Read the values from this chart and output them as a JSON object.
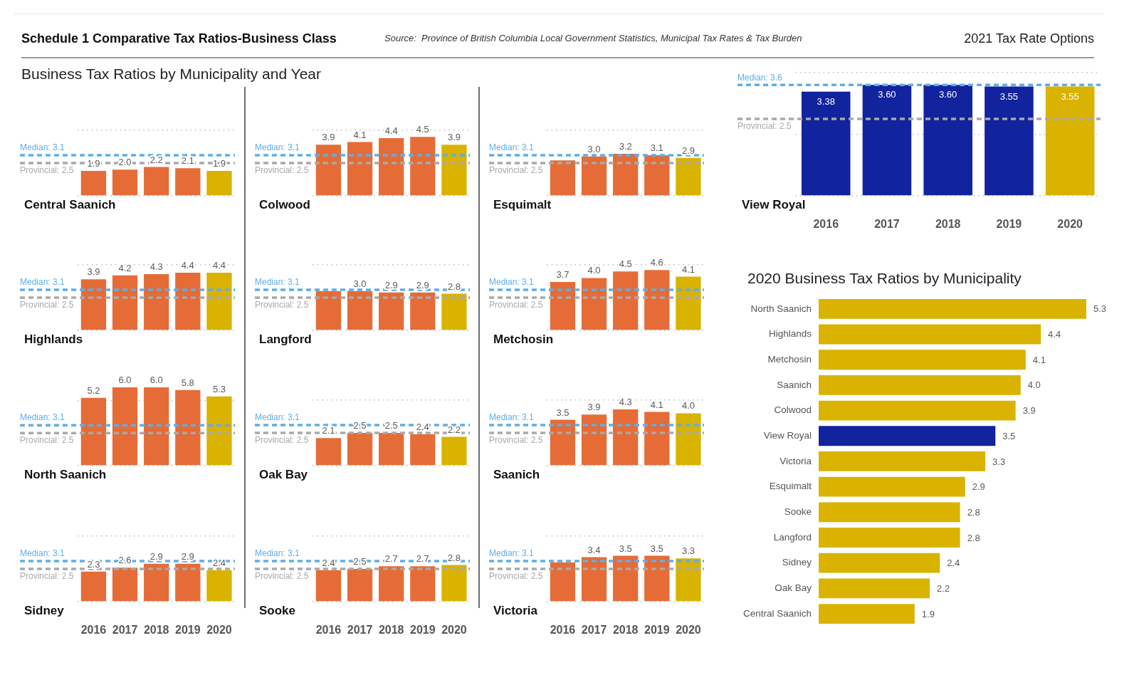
{
  "chart_data": [
    {
      "type": "other",
      "title": "Schedule 1 Comparative Tax Ratios-Business Class",
      "subtitle": "Business Tax Ratios by Municipality and Year",
      "annotations": [
        "Source:  Province of British Columbia Local Government Statistics, Municipal Tax Rates & Tax Burden",
        "2021 Tax Rate Options"
      ]
    },
    {
      "type": "bar",
      "title": "Central Saanich",
      "categories": [
        "2016",
        "2017",
        "2018",
        "2019",
        "2020"
      ],
      "values": [
        1.9,
        2.0,
        2.2,
        2.1,
        1.9
      ],
      "value_labels": [
        "1.9",
        "2.0",
        "2.2",
        "2.1",
        "1.9"
      ],
      "colors": [
        "#e66c37",
        "#e66c37",
        "#e66c37",
        "#e66c37",
        "#d9b300"
      ],
      "ylim": [
        0,
        5
      ],
      "yticks": [
        {
          "value": 0,
          "label": null
        },
        {
          "value": 5,
          "label": null
        }
      ],
      "grid": "y",
      "tick_labels": false,
      "ref_lines": [
        {
          "axis": "y",
          "value": 3.1,
          "label": "Median: 3.1",
          "color": "#5eaeea",
          "line_style": "dashed"
        },
        {
          "axis": "y",
          "value": 2.5,
          "label": "Provincial: 2.5",
          "color": "#a9a9a9",
          "line_style": "dashed"
        }
      ]
    },
    {
      "type": "bar",
      "title": "Colwood",
      "categories": [
        "2016",
        "2017",
        "2018",
        "2019",
        "2020"
      ],
      "values": [
        3.9,
        4.1,
        4.4,
        4.5,
        3.9
      ],
      "value_labels": [
        "3.9",
        "4.1",
        "4.4",
        "4.5",
        "3.9"
      ],
      "colors": [
        "#e66c37",
        "#e66c37",
        "#e66c37",
        "#e66c37",
        "#d9b300"
      ],
      "ylim": [
        0,
        5
      ],
      "yticks": [
        {
          "value": 0,
          "label": null
        },
        {
          "value": 5,
          "label": null
        }
      ],
      "grid": "y",
      "tick_labels": false,
      "ref_lines": [
        {
          "axis": "y",
          "value": 3.1,
          "label": "Median: 3.1",
          "color": "#5eaeea",
          "line_style": "dashed"
        },
        {
          "axis": "y",
          "value": 2.5,
          "label": "Provincial: 2.5",
          "color": "#a9a9a9",
          "line_style": "dashed"
        }
      ]
    },
    {
      "type": "bar",
      "title": "Esquimalt",
      "categories": [
        "2016",
        "2017",
        "2018",
        "2019",
        "2020"
      ],
      "values": [
        2.7,
        3.0,
        3.2,
        3.1,
        2.9
      ],
      "value_labels": [
        null,
        "3.0",
        "3.2",
        "3.1",
        "2.9"
      ],
      "colors": [
        "#e66c37",
        "#e66c37",
        "#e66c37",
        "#e66c37",
        "#d9b300"
      ],
      "ylim": [
        0,
        5
      ],
      "yticks": [
        {
          "value": 0,
          "label": null
        },
        {
          "value": 5,
          "label": null
        }
      ],
      "grid": "y",
      "tick_labels": false,
      "ref_lines": [
        {
          "axis": "y",
          "value": 3.1,
          "label": "Median: 3.1",
          "color": "#5eaeea",
          "line_style": "dashed"
        },
        {
          "axis": "y",
          "value": 2.5,
          "label": "Provincial: 2.5",
          "color": "#a9a9a9",
          "line_style": "dashed"
        }
      ]
    },
    {
      "type": "bar",
      "title": "Highlands",
      "categories": [
        "2016",
        "2017",
        "2018",
        "2019",
        "2020"
      ],
      "values": [
        3.9,
        4.2,
        4.3,
        4.4,
        4.4
      ],
      "value_labels": [
        "3.9",
        "4.2",
        "4.3",
        "4.4",
        "4.4"
      ],
      "colors": [
        "#e66c37",
        "#e66c37",
        "#e66c37",
        "#e66c37",
        "#d9b300"
      ],
      "ylim": [
        0,
        5
      ],
      "yticks": [
        {
          "value": 0,
          "label": null
        },
        {
          "value": 5,
          "label": null
        }
      ],
      "grid": "y",
      "tick_labels": false,
      "ref_lines": [
        {
          "axis": "y",
          "value": 3.1,
          "label": "Median: 3.1",
          "color": "#5eaeea",
          "line_style": "dashed"
        },
        {
          "axis": "y",
          "value": 2.5,
          "label": "Provincial: 2.5",
          "color": "#a9a9a9",
          "line_style": "dashed"
        }
      ]
    },
    {
      "type": "bar",
      "title": "Langford",
      "categories": [
        "2016",
        "2017",
        "2018",
        "2019",
        "2020"
      ],
      "values": [
        3.0,
        3.0,
        2.9,
        2.9,
        2.8
      ],
      "value_labels": [
        null,
        "3.0",
        "2.9",
        "2.9",
        "2.8"
      ],
      "colors": [
        "#e66c37",
        "#e66c37",
        "#e66c37",
        "#e66c37",
        "#d9b300"
      ],
      "ylim": [
        0,
        5
      ],
      "yticks": [
        {
          "value": 0,
          "label": null
        },
        {
          "value": 5,
          "label": null
        }
      ],
      "grid": "y",
      "tick_labels": false,
      "ref_lines": [
        {
          "axis": "y",
          "value": 3.1,
          "label": "Median: 3.1",
          "color": "#5eaeea",
          "line_style": "dashed"
        },
        {
          "axis": "y",
          "value": 2.5,
          "label": "Provincial: 2.5",
          "color": "#a9a9a9",
          "line_style": "dashed"
        }
      ]
    },
    {
      "type": "bar",
      "title": "Metchosin",
      "categories": [
        "2016",
        "2017",
        "2018",
        "2019",
        "2020"
      ],
      "values": [
        3.7,
        4.0,
        4.5,
        4.6,
        4.1
      ],
      "value_labels": [
        "3.7",
        "4.0",
        "4.5",
        "4.6",
        "4.1"
      ],
      "colors": [
        "#e66c37",
        "#e66c37",
        "#e66c37",
        "#e66c37",
        "#d9b300"
      ],
      "ylim": [
        0,
        5
      ],
      "yticks": [
        {
          "value": 0,
          "label": null
        },
        {
          "value": 5,
          "label": null
        }
      ],
      "grid": "y",
      "tick_labels": false,
      "ref_lines": [
        {
          "axis": "y",
          "value": 3.1,
          "label": "Median: 3.1",
          "color": "#5eaeea",
          "line_style": "dashed"
        },
        {
          "axis": "y",
          "value": 2.5,
          "label": "Provincial: 2.5",
          "color": "#a9a9a9",
          "line_style": "dashed"
        }
      ]
    },
    {
      "type": "bar",
      "title": "North Saanich",
      "categories": [
        "2016",
        "2017",
        "2018",
        "2019",
        "2020"
      ],
      "values": [
        5.2,
        6.0,
        6.0,
        5.8,
        5.3
      ],
      "value_labels": [
        "5.2",
        "6.0",
        "6.0",
        "5.8",
        "5.3"
      ],
      "colors": [
        "#e66c37",
        "#e66c37",
        "#e66c37",
        "#e66c37",
        "#d9b300"
      ],
      "ylim": [
        0,
        6
      ],
      "yticks": [
        {
          "value": 0,
          "label": null
        },
        {
          "value": 5,
          "label": null
        }
      ],
      "grid": "y",
      "tick_labels": false,
      "ref_lines": [
        {
          "axis": "y",
          "value": 3.1,
          "label": "Median: 3.1",
          "color": "#5eaeea",
          "line_style": "dashed"
        },
        {
          "axis": "y",
          "value": 2.5,
          "label": "Provincial: 2.5",
          "color": "#a9a9a9",
          "line_style": "dashed"
        }
      ]
    },
    {
      "type": "bar",
      "title": "Oak Bay",
      "categories": [
        "2016",
        "2017",
        "2018",
        "2019",
        "2020"
      ],
      "values": [
        2.1,
        2.5,
        2.5,
        2.4,
        2.2
      ],
      "value_labels": [
        "2.1",
        "2.5",
        "2.5",
        "2.4",
        "2.2"
      ],
      "colors": [
        "#e66c37",
        "#e66c37",
        "#e66c37",
        "#e66c37",
        "#d9b300"
      ],
      "ylim": [
        0,
        5
      ],
      "yticks": [
        {
          "value": 0,
          "label": null
        },
        {
          "value": 5,
          "label": null
        }
      ],
      "grid": "y",
      "tick_labels": false,
      "ref_lines": [
        {
          "axis": "y",
          "value": 3.1,
          "label": "Median: 3.1",
          "color": "#5eaeea",
          "line_style": "dashed"
        },
        {
          "axis": "y",
          "value": 2.5,
          "label": "Provincial: 2.5",
          "color": "#a9a9a9",
          "line_style": "dashed"
        }
      ]
    },
    {
      "type": "bar",
      "title": "Saanich",
      "categories": [
        "2016",
        "2017",
        "2018",
        "2019",
        "2020"
      ],
      "values": [
        3.5,
        3.9,
        4.3,
        4.1,
        4.0
      ],
      "value_labels": [
        "3.5",
        "3.9",
        "4.3",
        "4.1",
        "4.0"
      ],
      "colors": [
        "#e66c37",
        "#e66c37",
        "#e66c37",
        "#e66c37",
        "#d9b300"
      ],
      "ylim": [
        0,
        5
      ],
      "yticks": [
        {
          "value": 0,
          "label": null
        },
        {
          "value": 5,
          "label": null
        }
      ],
      "grid": "y",
      "tick_labels": false,
      "ref_lines": [
        {
          "axis": "y",
          "value": 3.1,
          "label": "Median: 3.1",
          "color": "#5eaeea",
          "line_style": "dashed"
        },
        {
          "axis": "y",
          "value": 2.5,
          "label": "Provincial: 2.5",
          "color": "#a9a9a9",
          "line_style": "dashed"
        }
      ]
    },
    {
      "type": "bar",
      "title": "Sidney",
      "categories": [
        "2016",
        "2017",
        "2018",
        "2019",
        "2020"
      ],
      "values": [
        2.3,
        2.6,
        2.9,
        2.9,
        2.4
      ],
      "value_labels": [
        "2.3",
        "2.6",
        "2.9",
        "2.9",
        "2.4"
      ],
      "colors": [
        "#e66c37",
        "#e66c37",
        "#e66c37",
        "#e66c37",
        "#d9b300"
      ],
      "ylim": [
        0,
        5
      ],
      "yticks": [
        {
          "value": 0,
          "label": null
        },
        {
          "value": 5,
          "label": null
        }
      ],
      "grid": "y",
      "tick_labels": "x",
      "ref_lines": [
        {
          "axis": "y",
          "value": 3.1,
          "label": "Median: 3.1",
          "color": "#5eaeea",
          "line_style": "dashed"
        },
        {
          "axis": "y",
          "value": 2.5,
          "label": "Provincial: 2.5",
          "color": "#a9a9a9",
          "line_style": "dashed"
        }
      ]
    },
    {
      "type": "bar",
      "title": "Sooke",
      "categories": [
        "2016",
        "2017",
        "2018",
        "2019",
        "2020"
      ],
      "values": [
        2.4,
        2.5,
        2.7,
        2.7,
        2.8
      ],
      "value_labels": [
        "2.4",
        "2.5",
        "2.7",
        "2.7",
        "2.8"
      ],
      "colors": [
        "#e66c37",
        "#e66c37",
        "#e66c37",
        "#e66c37",
        "#d9b300"
      ],
      "ylim": [
        0,
        5
      ],
      "yticks": [
        {
          "value": 0,
          "label": null
        },
        {
          "value": 5,
          "label": null
        }
      ],
      "grid": "y",
      "tick_labels": "x",
      "ref_lines": [
        {
          "axis": "y",
          "value": 3.1,
          "label": "Median: 3.1",
          "color": "#5eaeea",
          "line_style": "dashed"
        },
        {
          "axis": "y",
          "value": 2.5,
          "label": "Provincial: 2.5",
          "color": "#a9a9a9",
          "line_style": "dashed"
        }
      ]
    },
    {
      "type": "bar",
      "title": "Victoria",
      "categories": [
        "2016",
        "2017",
        "2018",
        "2019",
        "2020"
      ],
      "values": [
        3.0,
        3.4,
        3.5,
        3.5,
        3.3
      ],
      "value_labels": [
        null,
        "3.4",
        "3.5",
        "3.5",
        "3.3"
      ],
      "colors": [
        "#e66c37",
        "#e66c37",
        "#e66c37",
        "#e66c37",
        "#d9b300"
      ],
      "ylim": [
        0,
        5
      ],
      "yticks": [
        {
          "value": 0,
          "label": null
        },
        {
          "value": 5,
          "label": null
        }
      ],
      "grid": "y",
      "tick_labels": "x",
      "ref_lines": [
        {
          "axis": "y",
          "value": 3.1,
          "label": "Median: 3.1",
          "color": "#5eaeea",
          "line_style": "dashed"
        },
        {
          "axis": "y",
          "value": 2.5,
          "label": "Provincial: 2.5",
          "color": "#a9a9a9",
          "line_style": "dashed"
        }
      ]
    },
    {
      "type": "bar",
      "title": "View Royal",
      "categories": [
        "2016",
        "2017",
        "2018",
        "2019",
        "2020"
      ],
      "values": [
        3.38,
        3.6,
        3.6,
        3.55,
        3.55
      ],
      "value_labels": [
        "3.38",
        "3.60",
        "3.60",
        "3.55",
        "3.55"
      ],
      "colors": [
        "#12239e",
        "#12239e",
        "#12239e",
        "#12239e",
        "#d9b300"
      ],
      "ylim": [
        0,
        4
      ],
      "yticks": [
        {
          "value": 0,
          "label": null
        },
        {
          "value": 2,
          "label": null
        },
        {
          "value": 4,
          "label": null
        }
      ],
      "grid": "y",
      "tick_labels": "x",
      "ref_lines": [
        {
          "axis": "y",
          "value": 3.6,
          "label": "Median: 3.6",
          "color": "#5eaeea",
          "line_style": "dashed"
        },
        {
          "axis": "y",
          "value": 2.5,
          "label": "Provincial: 2.5",
          "color": "#a9a9a9",
          "line_style": "dashed"
        }
      ]
    },
    {
      "type": "bar",
      "orientation": "horizontal",
      "title": "2020 Business Tax Ratios by Municipality",
      "categories": [
        "North Saanich",
        "Highlands",
        "Metchosin",
        "Saanich",
        "Colwood",
        "View Royal",
        "Victoria",
        "Esquimalt",
        "Sooke",
        "Langford",
        "Sidney",
        "Oak Bay",
        "Central Saanich"
      ],
      "values": [
        5.3,
        4.4,
        4.1,
        4.0,
        3.9,
        3.5,
        3.3,
        2.9,
        2.8,
        2.8,
        2.4,
        2.2,
        1.9
      ],
      "value_labels": [
        "5.3",
        "4.4",
        "4.1",
        "4.0",
        "3.9",
        "3.5",
        "3.3",
        "2.9",
        "2.8",
        "2.8",
        "2.4",
        "2.2",
        "1.9"
      ],
      "colors": [
        "#d9b300",
        "#d9b300",
        "#d9b300",
        "#d9b300",
        "#d9b300",
        "#12239e",
        "#d9b300",
        "#d9b300",
        "#d9b300",
        "#d9b300",
        "#d9b300",
        "#d9b300",
        "#d9b300"
      ],
      "xlim": [
        0,
        5.3
      ],
      "tick_labels": "y"
    }
  ]
}
